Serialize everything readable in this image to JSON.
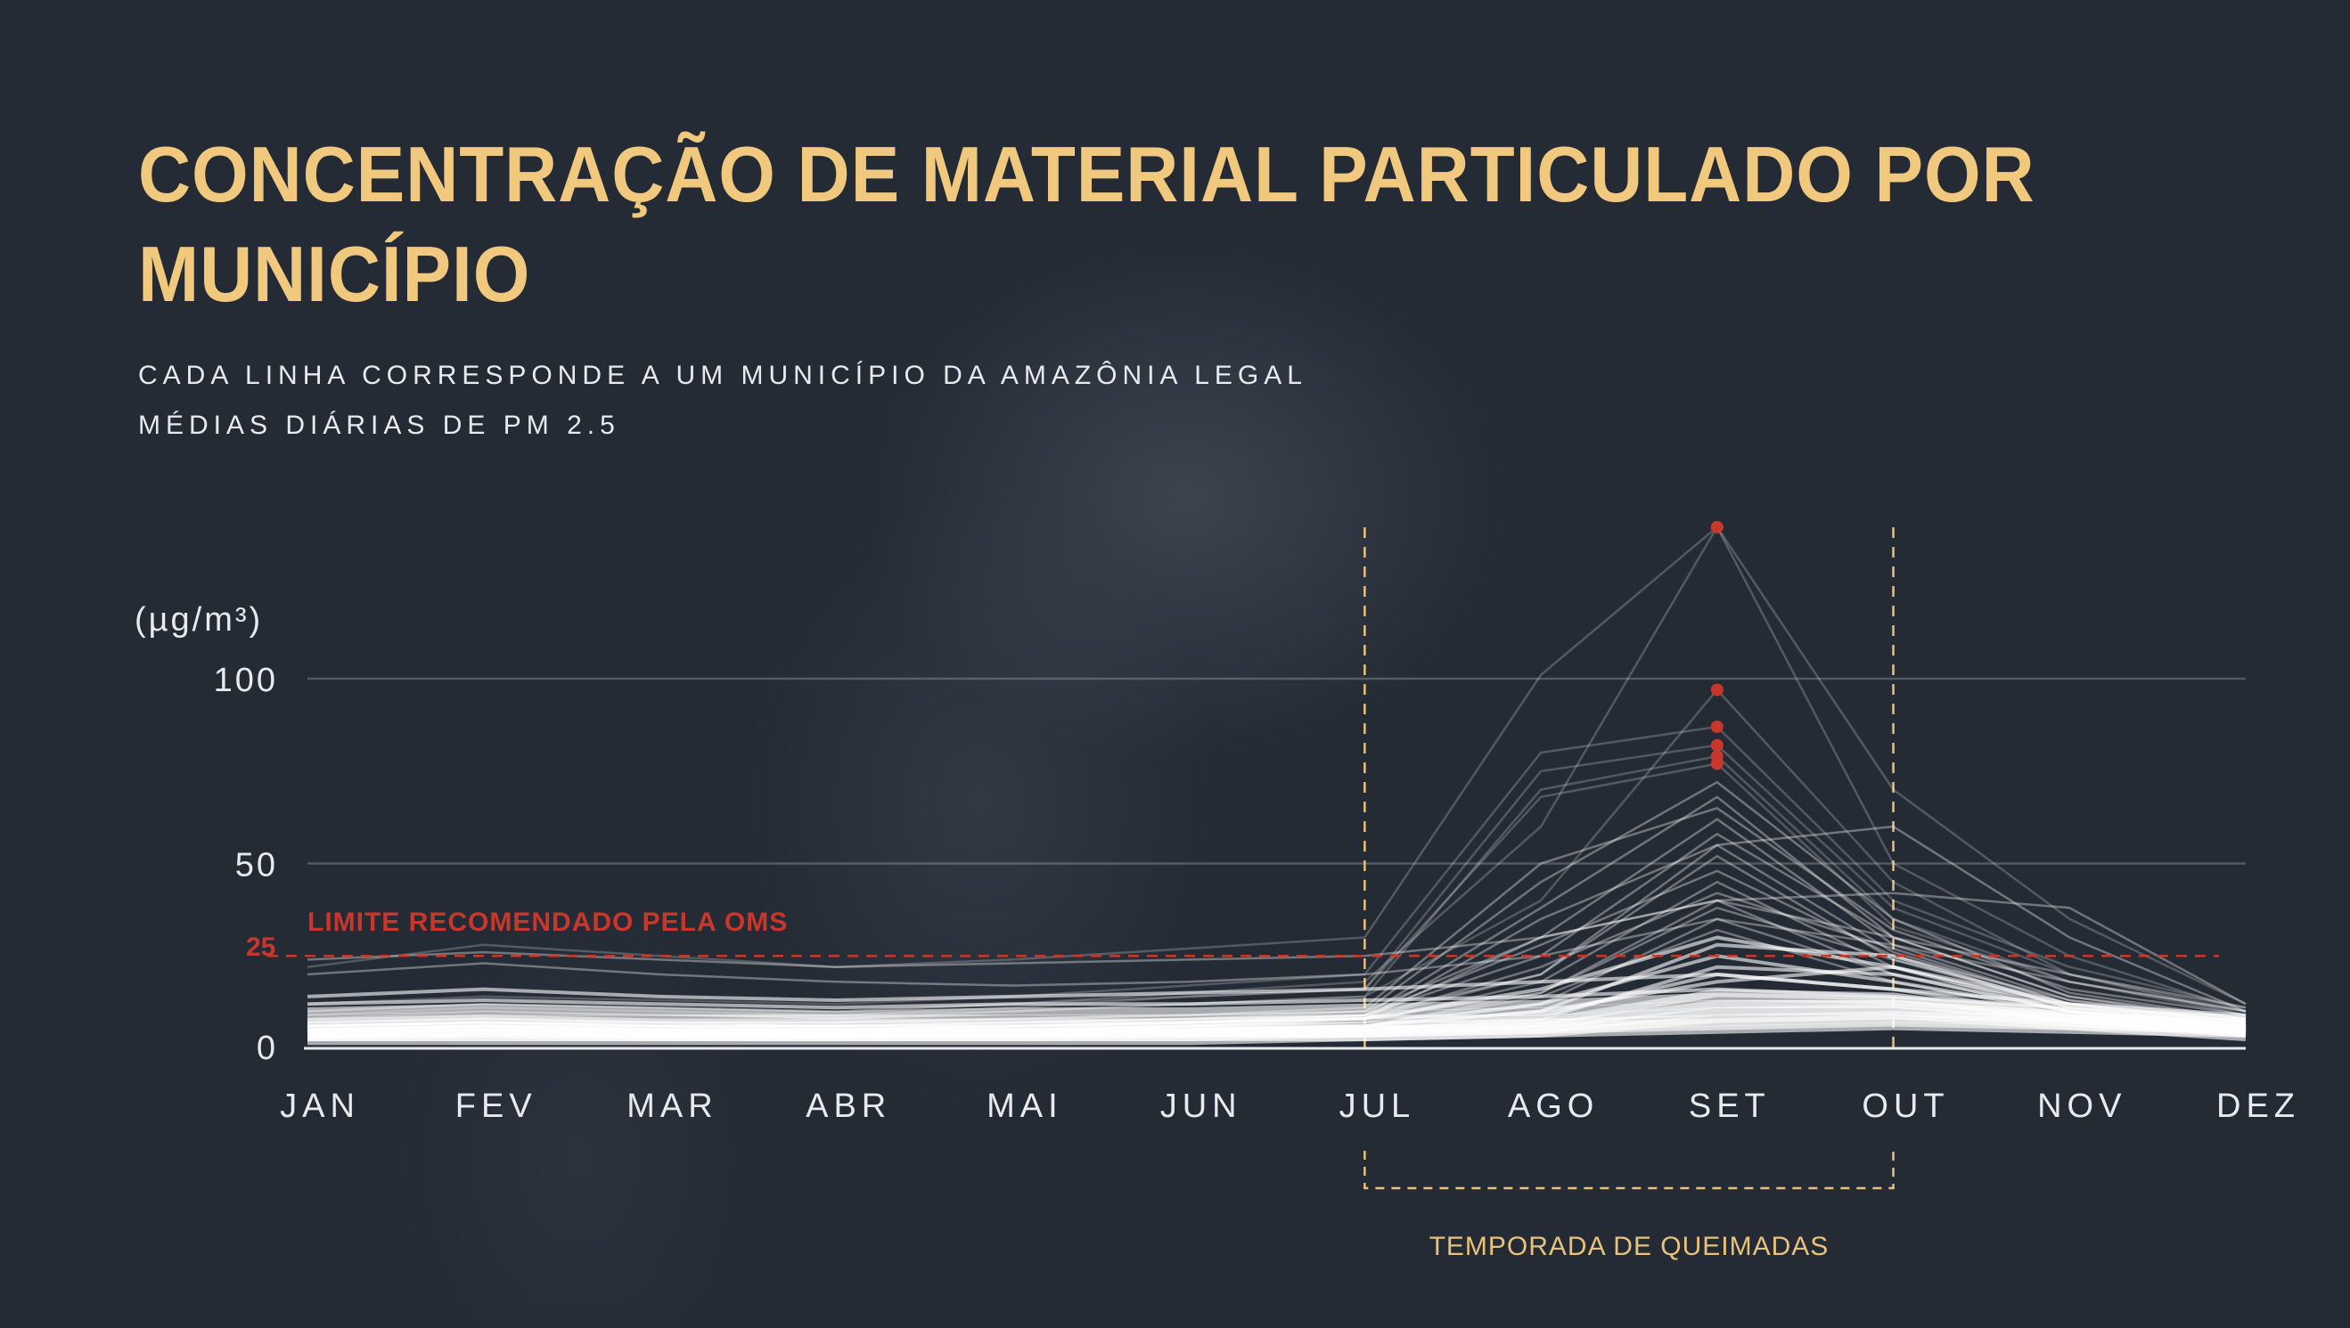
{
  "title": "CONCENTRAÇÃO DE MATERIAL PARTICULADO POR MUNICÍPIO",
  "subtitle_lines": [
    "CADA LINHA CORRESPONDE A UM MUNICÍPIO DA AMAZÔNIA LEGAL",
    "MÉDIAS DIÁRIAS DE PM 2.5"
  ],
  "colors": {
    "background": "#252b35",
    "title": "#f1c97e",
    "limit": "#c9372c",
    "season": "#e8c27a",
    "lines": "#ffffff"
  },
  "chart_data": {
    "type": "line",
    "title": "CONCENTRAÇÃO DE MATERIAL PARTICULADO POR MUNICÍPIO",
    "ylabel": "(µg/m³)",
    "xlabel": "",
    "categories": [
      "JAN",
      "FEV",
      "MAR",
      "ABR",
      "MAI",
      "JUN",
      "JUL",
      "AGO",
      "SET",
      "OUT",
      "NOV",
      "DEZ"
    ],
    "yticks": [
      "0",
      "50",
      "100"
    ],
    "ytick_values": [
      0,
      50,
      100
    ],
    "ylim": [
      0,
      145
    ],
    "grid": true,
    "reference_line": {
      "value": 25,
      "label": "LIMITE RECOMENDADO PELA OMS",
      "tick_label": "25"
    },
    "season_annotation": {
      "from": "JUL",
      "to": "OUT",
      "label": "TEMPORADA DE QUEIMADAS"
    },
    "highlight_threshold": 75,
    "series": [
      [
        22,
        28,
        25,
        22,
        24,
        27,
        30,
        101,
        141,
        70,
        35,
        12
      ],
      [
        10,
        12,
        11,
        10,
        12,
        15,
        18,
        60,
        141,
        50,
        25,
        10
      ],
      [
        8,
        10,
        9,
        9,
        10,
        12,
        14,
        40,
        97,
        45,
        20,
        9
      ],
      [
        12,
        14,
        13,
        12,
        14,
        17,
        20,
        80,
        87,
        40,
        22,
        11
      ],
      [
        9,
        11,
        10,
        9,
        11,
        14,
        16,
        75,
        82,
        38,
        20,
        10
      ],
      [
        8,
        9,
        9,
        8,
        10,
        12,
        14,
        70,
        79,
        35,
        18,
        9
      ],
      [
        10,
        12,
        11,
        10,
        12,
        14,
        16,
        68,
        77,
        33,
        18,
        10
      ],
      [
        6,
        7,
        6,
        6,
        7,
        8,
        10,
        45,
        72,
        35,
        15,
        8
      ],
      [
        5,
        6,
        6,
        5,
        6,
        7,
        9,
        38,
        68,
        30,
        14,
        7
      ],
      [
        7,
        8,
        7,
        7,
        8,
        9,
        11,
        50,
        65,
        32,
        16,
        9
      ],
      [
        5,
        6,
        5,
        5,
        6,
        7,
        8,
        30,
        62,
        28,
        13,
        7
      ],
      [
        6,
        7,
        6,
        6,
        6,
        7,
        9,
        25,
        58,
        30,
        14,
        8
      ],
      [
        4,
        5,
        5,
        4,
        5,
        6,
        8,
        35,
        55,
        26,
        12,
        6
      ],
      [
        5,
        6,
        5,
        5,
        5,
        6,
        8,
        20,
        52,
        24,
        12,
        7
      ],
      [
        6,
        7,
        7,
        6,
        7,
        8,
        9,
        28,
        48,
        25,
        13,
        8
      ],
      [
        4,
        5,
        4,
        4,
        5,
        6,
        7,
        18,
        45,
        22,
        11,
        6
      ],
      [
        5,
        6,
        5,
        5,
        6,
        7,
        8,
        22,
        42,
        27,
        12,
        7
      ],
      [
        7,
        8,
        7,
        7,
        8,
        9,
        10,
        30,
        40,
        20,
        12,
        8
      ],
      [
        4,
        5,
        4,
        4,
        4,
        5,
        6,
        15,
        38,
        24,
        11,
        6
      ],
      [
        5,
        5,
        5,
        5,
        5,
        6,
        7,
        12,
        35,
        20,
        10,
        6
      ],
      [
        3,
        4,
        4,
        3,
        4,
        5,
        6,
        14,
        32,
        18,
        9,
        5
      ],
      [
        6,
        7,
        6,
        6,
        6,
        7,
        8,
        16,
        30,
        22,
        12,
        7
      ],
      [
        4,
        5,
        4,
        4,
        5,
        5,
        6,
        10,
        28,
        25,
        11,
        6
      ],
      [
        5,
        6,
        5,
        5,
        5,
        6,
        6,
        12,
        25,
        18,
        10,
        6
      ],
      [
        3,
        4,
        3,
        3,
        4,
        4,
        5,
        8,
        22,
        20,
        10,
        5
      ],
      [
        4,
        5,
        4,
        4,
        4,
        5,
        5,
        9,
        20,
        16,
        9,
        5
      ],
      [
        5,
        6,
        5,
        5,
        5,
        5,
        6,
        10,
        18,
        22,
        10,
        6
      ],
      [
        3,
        3,
        3,
        3,
        3,
        4,
        4,
        7,
        15,
        14,
        8,
        4
      ],
      [
        4,
        4,
        4,
        4,
        4,
        4,
        5,
        6,
        12,
        12,
        8,
        5
      ],
      [
        3,
        3,
        3,
        3,
        3,
        3,
        4,
        5,
        10,
        10,
        7,
        4
      ],
      [
        2,
        2,
        2,
        2,
        2,
        2,
        3,
        4,
        8,
        9,
        6,
        3
      ],
      [
        6,
        7,
        6,
        6,
        7,
        8,
        9,
        20,
        55,
        60,
        30,
        10
      ],
      [
        5,
        6,
        5,
        5,
        6,
        7,
        8,
        15,
        40,
        42,
        38,
        12
      ],
      [
        14,
        16,
        14,
        13,
        14,
        15,
        16,
        18,
        20,
        16,
        12,
        9
      ],
      [
        20,
        23,
        20,
        18,
        17,
        18,
        20,
        25,
        35,
        28,
        18,
        10
      ],
      [
        24,
        26,
        24,
        22,
        23,
        24,
        25,
        30,
        40,
        30,
        20,
        11
      ],
      [
        12,
        13,
        12,
        11,
        12,
        12,
        13,
        14,
        16,
        14,
        11,
        8
      ],
      [
        10,
        11,
        10,
        9,
        10,
        10,
        11,
        12,
        14,
        13,
        10,
        8
      ],
      [
        8,
        9,
        8,
        8,
        8,
        8,
        9,
        10,
        12,
        12,
        9,
        7
      ],
      [
        7,
        8,
        7,
        7,
        7,
        7,
        8,
        8,
        10,
        11,
        8,
        7
      ],
      [
        6,
        7,
        6,
        6,
        6,
        6,
        6,
        7,
        8,
        9,
        8,
        6
      ],
      [
        5,
        6,
        5,
        5,
        5,
        5,
        5,
        6,
        7,
        8,
        7,
        5
      ],
      [
        4,
        5,
        4,
        4,
        4,
        4,
        4,
        5,
        6,
        7,
        6,
        5
      ],
      [
        3,
        4,
        3,
        3,
        3,
        3,
        3,
        4,
        5,
        6,
        5,
        4
      ]
    ]
  }
}
